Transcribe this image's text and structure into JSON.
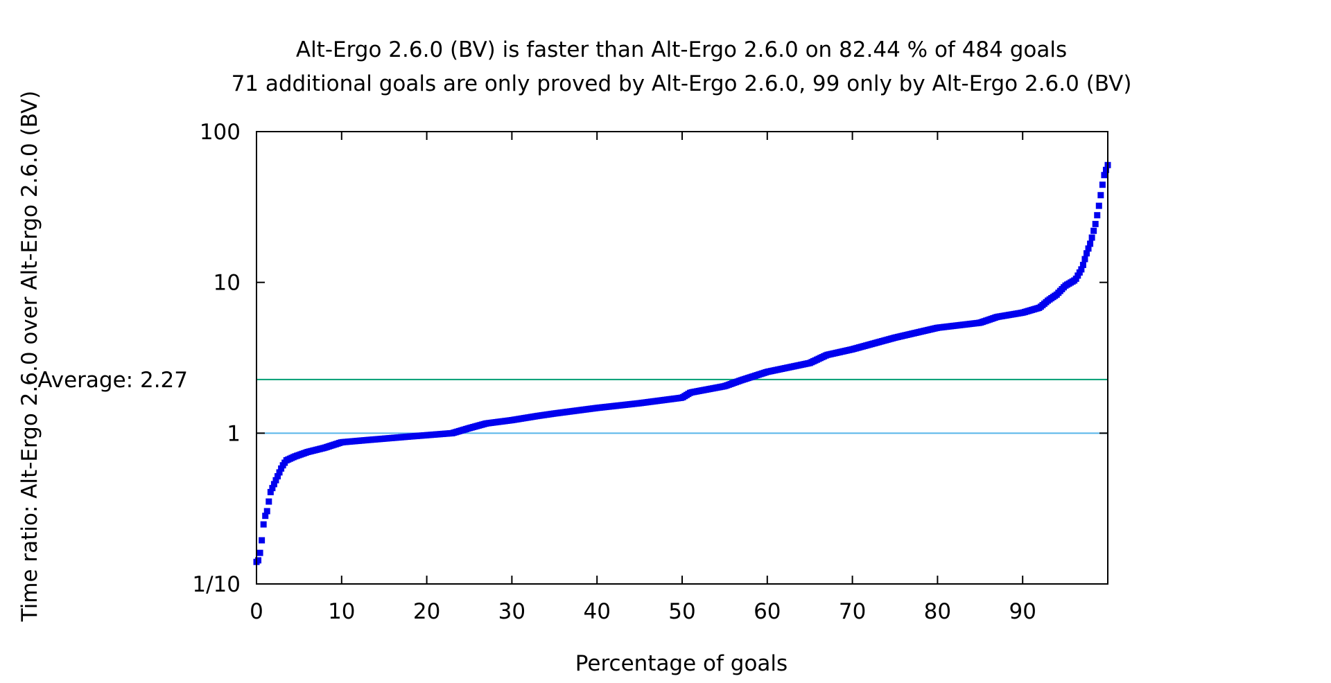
{
  "chart_data": {
    "type": "scatter",
    "title_lines": [
      "Alt-Ergo 2.6.0 (BV) is faster than Alt-Ergo 2.6.0 on 82.44 % of 484 goals",
      "71 additional goals are only proved by Alt-Ergo 2.6.0, 99 only by Alt-Ergo 2.6.0 (BV)"
    ],
    "xlabel": "Percentage of goals",
    "ylabel": "Time ratio: Alt-Ergo 2.6.0 over Alt-Ergo 2.6.0 (BV)",
    "xlim": [
      0,
      100
    ],
    "ylim": [
      0.1,
      100
    ],
    "y_scale": "log",
    "grid": false,
    "x_ticks": [
      {
        "value": 0,
        "label": "0"
      },
      {
        "value": 10,
        "label": "10"
      },
      {
        "value": 20,
        "label": "20"
      },
      {
        "value": 30,
        "label": "30"
      },
      {
        "value": 40,
        "label": "40"
      },
      {
        "value": 50,
        "label": "50"
      },
      {
        "value": 60,
        "label": "60"
      },
      {
        "value": 70,
        "label": "70"
      },
      {
        "value": 80,
        "label": "80"
      },
      {
        "value": 90,
        "label": "90"
      }
    ],
    "y_ticks": [
      {
        "value": 0.1,
        "label": "1/10"
      },
      {
        "value": 1,
        "label": "1"
      },
      {
        "value": 10,
        "label": "10"
      },
      {
        "value": 100,
        "label": "100"
      }
    ],
    "reference_lines": [
      {
        "value": 2.27,
        "label": "Average: 2.27",
        "color": "#009e73"
      },
      {
        "value": 1,
        "label": "",
        "color": "#56b4e9"
      }
    ],
    "series": [
      {
        "color": "#0000ee",
        "marker": "square",
        "profile": [
          [
            0,
            0.14
          ],
          [
            0.3,
            0.145
          ],
          [
            0.6,
            0.19
          ],
          [
            0.9,
            0.27
          ],
          [
            1.3,
            0.31
          ],
          [
            1.6,
            0.4
          ],
          [
            2.0,
            0.45
          ],
          [
            2.5,
            0.52
          ],
          [
            3.0,
            0.6
          ],
          [
            3.5,
            0.66
          ],
          [
            4.5,
            0.7
          ],
          [
            6,
            0.75
          ],
          [
            8,
            0.8
          ],
          [
            10,
            0.87
          ],
          [
            13,
            0.9
          ],
          [
            18,
            0.95
          ],
          [
            23,
            1.0
          ],
          [
            25,
            1.08
          ],
          [
            27,
            1.16
          ],
          [
            30,
            1.22
          ],
          [
            33,
            1.3
          ],
          [
            35,
            1.35
          ],
          [
            40,
            1.47
          ],
          [
            45,
            1.58
          ],
          [
            50,
            1.72
          ],
          [
            51,
            1.86
          ],
          [
            55,
            2.05
          ],
          [
            57,
            2.25
          ],
          [
            60,
            2.55
          ],
          [
            65,
            2.92
          ],
          [
            67,
            3.3
          ],
          [
            70,
            3.6
          ],
          [
            75,
            4.3
          ],
          [
            80,
            5.0
          ],
          [
            85,
            5.4
          ],
          [
            87,
            5.9
          ],
          [
            90,
            6.3
          ],
          [
            92,
            6.8
          ],
          [
            93,
            7.6
          ],
          [
            94,
            8.3
          ],
          [
            95,
            9.5
          ],
          [
            96.2,
            10.4
          ],
          [
            97,
            12.5
          ],
          [
            97.5,
            15.5
          ],
          [
            98,
            18.5
          ],
          [
            98.6,
            25
          ],
          [
            99,
            33
          ],
          [
            99.3,
            42
          ],
          [
            99.6,
            52
          ],
          [
            100,
            60
          ]
        ]
      }
    ]
  }
}
